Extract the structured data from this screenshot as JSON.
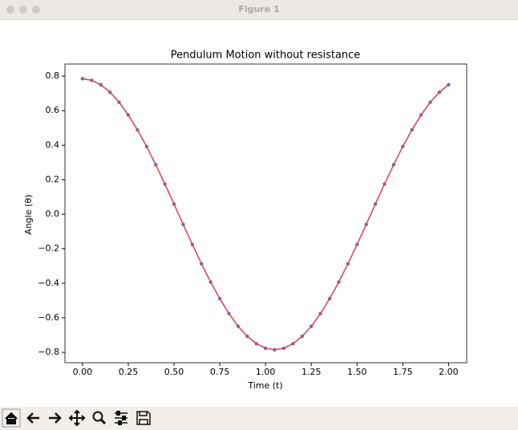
{
  "window": {
    "title": "Figure 1"
  },
  "chart_data": {
    "type": "line",
    "title": "Pendulum Motion without resistance",
    "x_label": "Time (t)",
    "y_label": "Angle (θ)",
    "x": [
      0,
      0.05,
      0.1,
      0.15,
      0.2,
      0.25,
      0.3,
      0.35,
      0.4,
      0.45,
      0.5,
      0.55,
      0.6,
      0.65,
      0.7,
      0.75,
      0.8,
      0.85,
      0.9,
      0.95,
      1.0,
      1.05,
      1.1,
      1.15,
      1.2,
      1.25,
      1.3,
      1.35,
      1.4,
      1.45,
      1.5,
      1.55,
      1.6,
      1.65,
      1.7,
      1.75,
      1.8,
      1.85,
      1.9,
      1.95,
      2.0
    ],
    "series": [
      {
        "color": "#4a6fd0",
        "style": "dotted",
        "values": [
          0.785,
          0.776,
          0.75,
          0.707,
          0.649,
          0.575,
          0.489,
          0.393,
          0.287,
          0.175,
          0.059,
          -0.059,
          -0.175,
          -0.287,
          -0.393,
          -0.489,
          -0.575,
          -0.649,
          -0.707,
          -0.75,
          -0.776,
          -0.785,
          -0.776,
          -0.75,
          -0.707,
          -0.649,
          -0.575,
          -0.489,
          -0.393,
          -0.287,
          -0.175,
          -0.059,
          0.059,
          0.175,
          0.287,
          0.393,
          0.489,
          0.575,
          0.649,
          0.707,
          0.75
        ]
      },
      {
        "color": "#d94b5a",
        "style": "solid",
        "values": [
          0.785,
          0.776,
          0.75,
          0.707,
          0.649,
          0.575,
          0.489,
          0.393,
          0.287,
          0.175,
          0.059,
          -0.059,
          -0.175,
          -0.287,
          -0.393,
          -0.489,
          -0.575,
          -0.649,
          -0.707,
          -0.75,
          -0.776,
          -0.785,
          -0.776,
          -0.75,
          -0.707,
          -0.649,
          -0.575,
          -0.489,
          -0.393,
          -0.287,
          -0.175,
          -0.059,
          0.059,
          0.175,
          0.287,
          0.393,
          0.489,
          0.575,
          0.649,
          0.707,
          0.75
        ]
      }
    ],
    "xlim": [
      -0.096,
      2.099
    ],
    "ylim": [
      -0.86,
      0.87
    ],
    "xticks": [
      {
        "value": 0,
        "label": "0.00"
      },
      0.25,
      {
        "value": 0.5,
        "label": "0.50"
      },
      0.75,
      {
        "value": 1,
        "label": "1.00"
      },
      1.25,
      {
        "value": 1.5,
        "label": "1.50"
      },
      1.75,
      {
        "value": 2,
        "label": "2.00"
      }
    ],
    "yticks": [
      {
        "value": -0.8,
        "label": "−0.8"
      },
      {
        "value": -0.6,
        "label": "−0.6"
      },
      {
        "value": -0.4,
        "label": "−0.4"
      },
      {
        "value": -0.2,
        "label": "−0.2"
      },
      {
        "value": 0,
        "label": "0.0"
      },
      0.2,
      0.4,
      0.6,
      0.8
    ],
    "grid": false
  }
}
